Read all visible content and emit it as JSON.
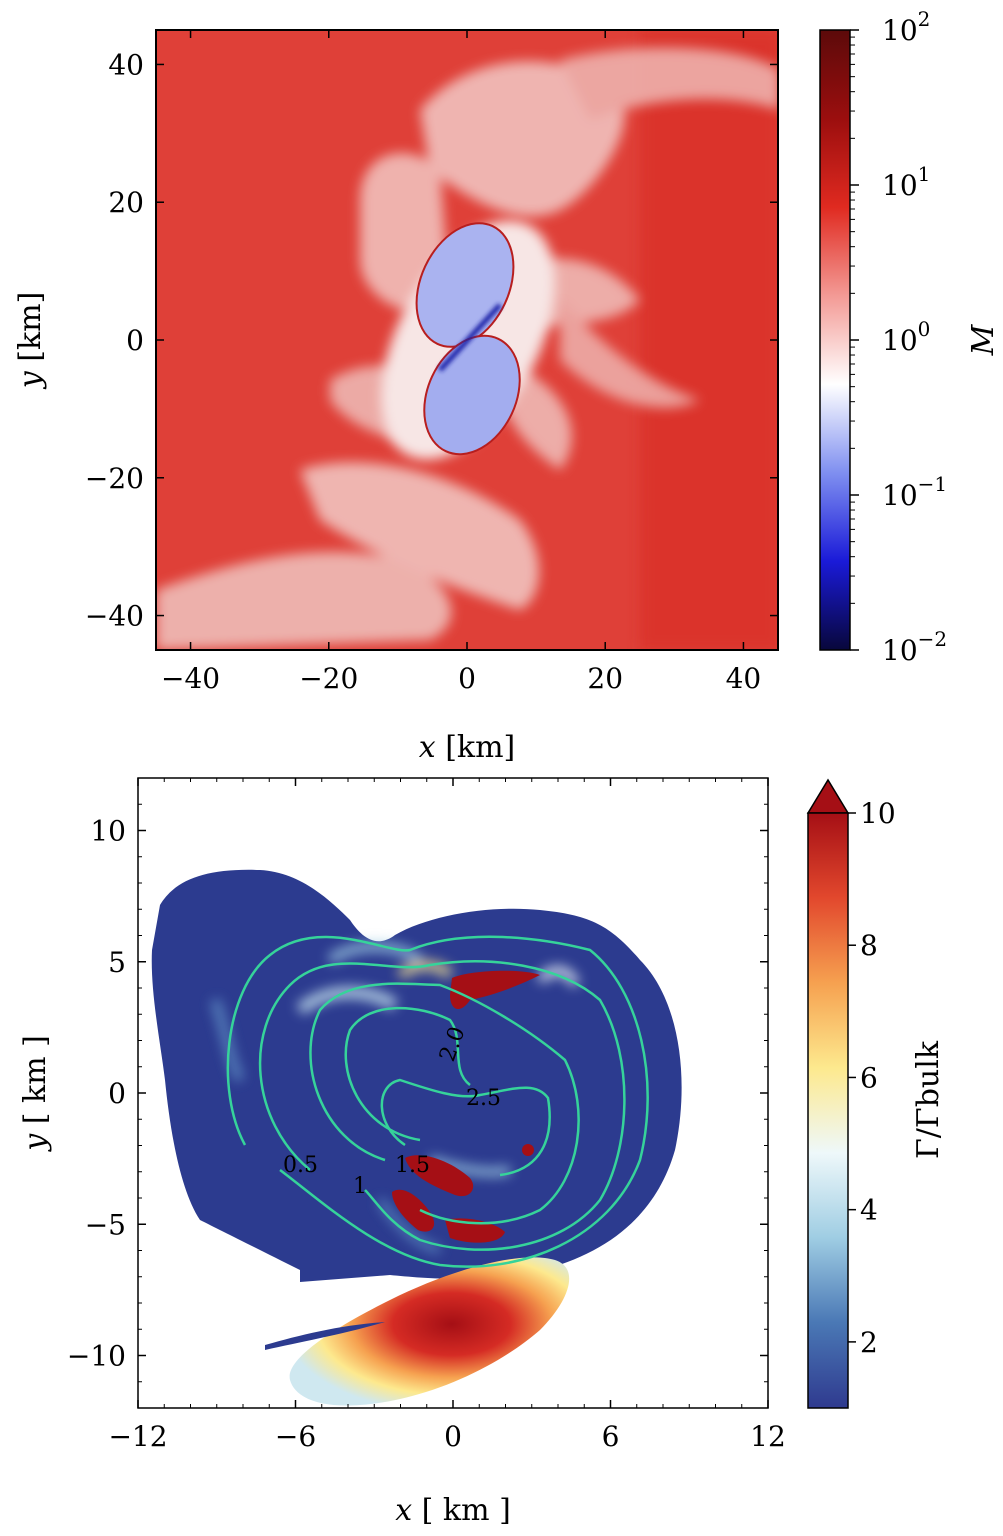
{
  "chart_data": [
    {
      "type": "heatmap",
      "title": "",
      "xlabel_var": "x",
      "xlabel_unit": "[km]",
      "ylabel_var": "y",
      "ylabel_unit": "[km]",
      "xlim": [
        -45,
        45
      ],
      "ylim": [
        -45,
        45
      ],
      "xticks": [
        "−40",
        "−20",
        "0",
        "20",
        "40"
      ],
      "xtick_values": [
        -40,
        -20,
        0,
        20,
        40
      ],
      "yticks": [
        "40",
        "20",
        "0",
        "−20",
        "−40"
      ],
      "ytick_values": [
        40,
        20,
        0,
        -20,
        -40
      ],
      "colorbar": {
        "label": "M",
        "scale": "log",
        "range": [
          0.01,
          100
        ],
        "ticks_base": [
          "10",
          "10",
          "10",
          "10",
          "10"
        ],
        "ticks_exp": [
          "2",
          "1",
          "0",
          "−1",
          "−2"
        ],
        "tick_values": [
          100,
          10,
          1,
          0.1,
          0.01
        ],
        "colormap": [
          "#08073b",
          "#1a1ad8",
          "#7f8ff0",
          "#ffffff",
          "#f39a95",
          "#e02a20",
          "#9b0e0e",
          "#5c0a0a"
        ]
      },
      "colors": {
        "background": "#e0423a",
        "inner_core": "#a9b2f1",
        "core_rim": "#b81e1e",
        "shock_shells": "#f3d1cf"
      }
    },
    {
      "type": "heatmap",
      "title": "",
      "xlabel_var": "x",
      "xlabel_unit": "[ km ]",
      "ylabel_var": "y",
      "ylabel_unit": "[ km ]",
      "xlim": [
        -12,
        12
      ],
      "ylim": [
        -12,
        12
      ],
      "xticks": [
        "−12",
        "−6",
        "0",
        "6",
        "12"
      ],
      "xtick_values": [
        -12,
        -6,
        0,
        6,
        12
      ],
      "yticks": [
        "10",
        "5",
        "0",
        "−5",
        "−10"
      ],
      "ytick_values": [
        10,
        5,
        0,
        -5,
        -10
      ],
      "contour_levels": [
        0.5,
        1.0,
        1.5,
        2.0,
        2.5
      ],
      "contour_labels": [
        "0.5",
        "1",
        "1.5",
        "2.0",
        "2.5"
      ],
      "contour_color": "#36d39a",
      "colorbar": {
        "label": "Γ/Γbulk",
        "scale": "linear",
        "range": [
          1,
          10
        ],
        "extend": "max",
        "ticks": [
          "10",
          "8",
          "6",
          "4",
          "2"
        ],
        "tick_values": [
          10,
          8,
          6,
          4,
          2
        ],
        "colormap": [
          "#2f3a8f",
          "#4a78b5",
          "#9fcde3",
          "#eef8fa",
          "#fde98e",
          "#f6a150",
          "#e2482d",
          "#a50f15"
        ]
      },
      "colors": {
        "background_fluid": "#2c3b8f",
        "hot_spots": "#a50f15"
      }
    }
  ]
}
